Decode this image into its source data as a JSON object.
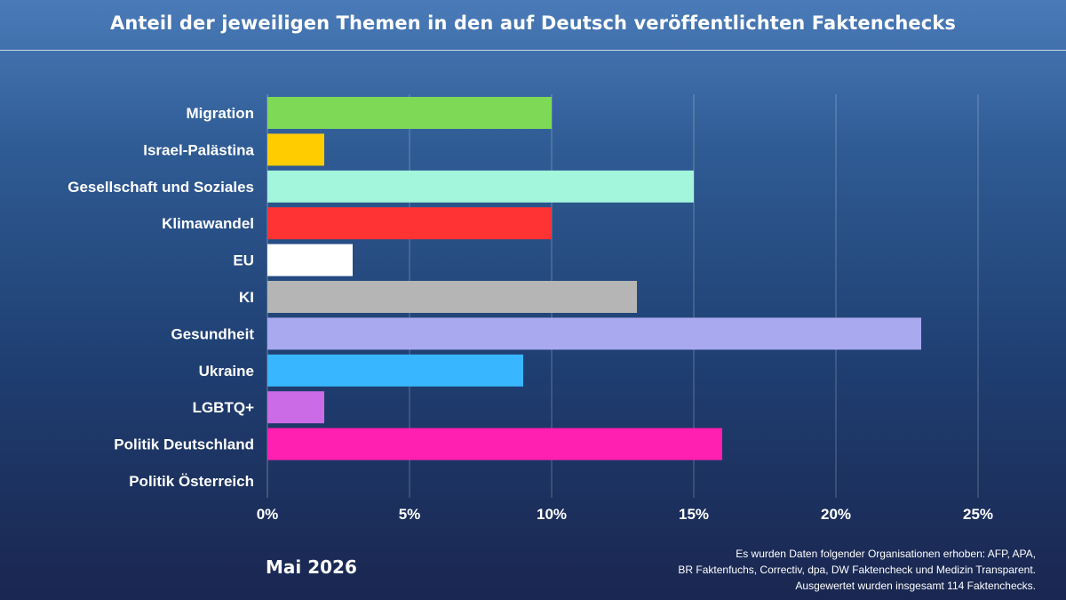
{
  "chart_data": {
    "type": "bar",
    "orientation": "horizontal",
    "title": "Anteil der jeweiligen Themen in den auf Deutsch veröffentlichten Faktenchecks",
    "categories": [
      "Migration",
      "Israel-Palästina",
      "Gesellschaft und Soziales",
      "Klimawandel",
      "EU",
      "KI",
      "Gesundheit",
      "Ukraine",
      "LGBTQ+",
      "Politik Deutschland",
      "Politik Österreich"
    ],
    "values": [
      10,
      2,
      15,
      10,
      3,
      13,
      23,
      9,
      2,
      16,
      0
    ],
    "colors": [
      "#7ed957",
      "#ffcc00",
      "#a3f5dc",
      "#ff3333",
      "#ffffff",
      "#b5b5b5",
      "#a9a9f0",
      "#38b6ff",
      "#cb6ce6",
      "#ff1fb0",
      "#ffffff"
    ],
    "unit": "%",
    "xlim": [
      0,
      25
    ],
    "xticks": [
      "0%",
      "5%",
      "10%",
      "15%",
      "20%",
      "25%"
    ],
    "grid": "vertical",
    "legend": "none"
  },
  "footer": {
    "date": "Mai 2026",
    "source_lines": [
      "Es wurden Daten folgender Organisationen erhoben: AFP, APA,",
      "BR Faktenfuchs, Correctiv, dpa, DW Faktencheck und Medizin Transparent.",
      "Ausgewertet wurden insgesamt 114 Faktenchecks."
    ]
  }
}
